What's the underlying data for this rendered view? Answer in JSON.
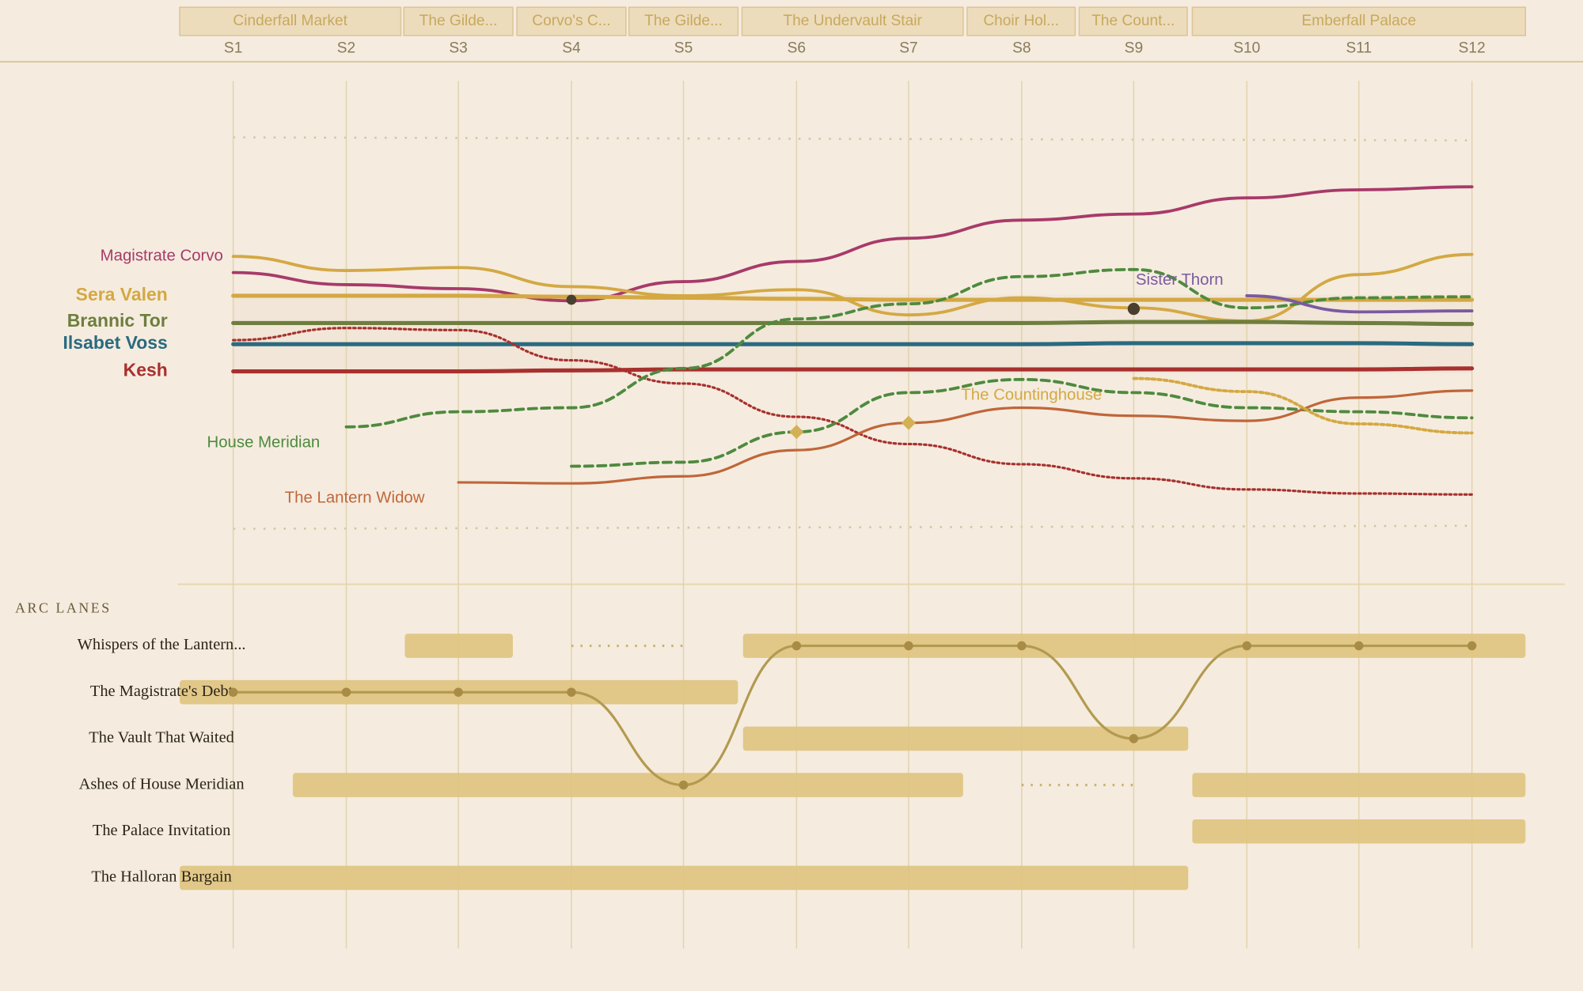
{
  "locations": [
    "Cinderfall Market",
    "The Gilde...",
    "Corvo's C...",
    "The Gilde...",
    "The Undervault Stair",
    "Choir Hol...",
    "The Count...",
    "Emberfall Palace"
  ],
  "scenes": [
    "S1",
    "S2",
    "S3",
    "S4",
    "S5",
    "S6",
    "S7",
    "S8",
    "S9",
    "S10",
    "S11",
    "S12"
  ],
  "characters": [
    "Magistrate Corvo",
    "Sera Valen",
    "Brannic Tor",
    "Ilsabet Voss",
    "Kesh",
    "House Meridian",
    "The Lantern Widow",
    "Sister Thorn",
    "The Countinghouse"
  ],
  "arc_lanes": {
    "title": "ARC LANES",
    "lanes": [
      "Whispers of the Lantern...",
      "The Magistrate's Debt",
      "The Vault That Waited",
      "Ashes of House Meridian",
      "The Palace Invitation",
      "The Halloran Bargain"
    ]
  }
}
